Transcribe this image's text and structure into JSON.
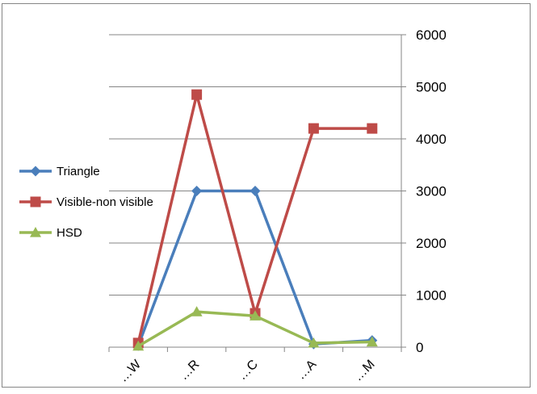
{
  "chart_data": {
    "type": "line",
    "categories": [
      "…W",
      "…R",
      "…C",
      "…A",
      "…M"
    ],
    "y_axis": {
      "position": "right",
      "min": 0,
      "max": 6000,
      "step": 1000,
      "ticks": [
        "0",
        "1000",
        "2000",
        "3000",
        "4000",
        "5000",
        "6000"
      ]
    },
    "grid": true,
    "legend": {
      "placement": "left"
    },
    "series": [
      {
        "name": "Triangle",
        "values": [
          30,
          3000,
          3000,
          60,
          130
        ],
        "color": "#4a7ebb",
        "marker": "diamond"
      },
      {
        "name": "Visible-non visible",
        "values": [
          80,
          4850,
          650,
          4200,
          4200
        ],
        "color": "#be4b48",
        "marker": "square"
      },
      {
        "name": "HSD",
        "values": [
          20,
          680,
          600,
          80,
          100
        ],
        "color": "#98b954",
        "marker": "triangle"
      }
    ]
  }
}
